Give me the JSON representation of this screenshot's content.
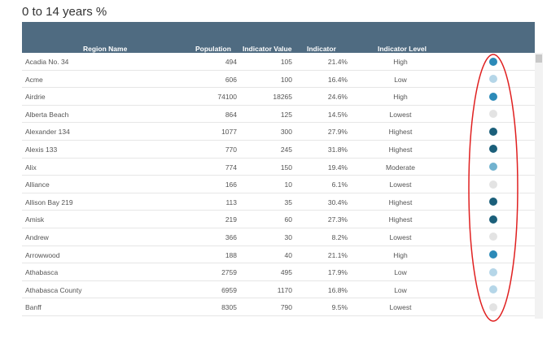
{
  "title": "0 to 14 years %",
  "columns": {
    "region": "Region Name",
    "population": "Population",
    "value": "Indicator Value",
    "indicator": "Indicator",
    "level": "Indicator Level"
  },
  "level_colors": {
    "Highest": "#1b5f7a",
    "High": "#2c8ab8",
    "Moderate": "#72b2cf",
    "Low": "#b5d6e8",
    "Lowest": "#e3e3e3"
  },
  "annotation_color": "#e02020",
  "rows": [
    {
      "name": "Acadia No. 34",
      "population": "494",
      "value": "105",
      "indicator": "21.4%",
      "level": "High"
    },
    {
      "name": "Acme",
      "population": "606",
      "value": "100",
      "indicator": "16.4%",
      "level": "Low"
    },
    {
      "name": "Airdrie",
      "population": "74100",
      "value": "18265",
      "indicator": "24.6%",
      "level": "High"
    },
    {
      "name": "Alberta Beach",
      "population": "864",
      "value": "125",
      "indicator": "14.5%",
      "level": "Lowest"
    },
    {
      "name": "Alexander 134",
      "population": "1077",
      "value": "300",
      "indicator": "27.9%",
      "level": "Highest"
    },
    {
      "name": "Alexis 133",
      "population": "770",
      "value": "245",
      "indicator": "31.8%",
      "level": "Highest"
    },
    {
      "name": "Alix",
      "population": "774",
      "value": "150",
      "indicator": "19.4%",
      "level": "Moderate"
    },
    {
      "name": "Alliance",
      "population": "166",
      "value": "10",
      "indicator": "6.1%",
      "level": "Lowest"
    },
    {
      "name": "Allison Bay 219",
      "population": "113",
      "value": "35",
      "indicator": "30.4%",
      "level": "Highest"
    },
    {
      "name": "Amisk",
      "population": "219",
      "value": "60",
      "indicator": "27.3%",
      "level": "Highest"
    },
    {
      "name": "Andrew",
      "population": "366",
      "value": "30",
      "indicator": "8.2%",
      "level": "Lowest"
    },
    {
      "name": "Arrowwood",
      "population": "188",
      "value": "40",
      "indicator": "21.1%",
      "level": "High"
    },
    {
      "name": "Athabasca",
      "population": "2759",
      "value": "495",
      "indicator": "17.9%",
      "level": "Low"
    },
    {
      "name": "Athabasca County",
      "population": "6959",
      "value": "1170",
      "indicator": "16.8%",
      "level": "Low"
    },
    {
      "name": "Banff",
      "population": "8305",
      "value": "790",
      "indicator": "9.5%",
      "level": "Lowest"
    }
  ]
}
